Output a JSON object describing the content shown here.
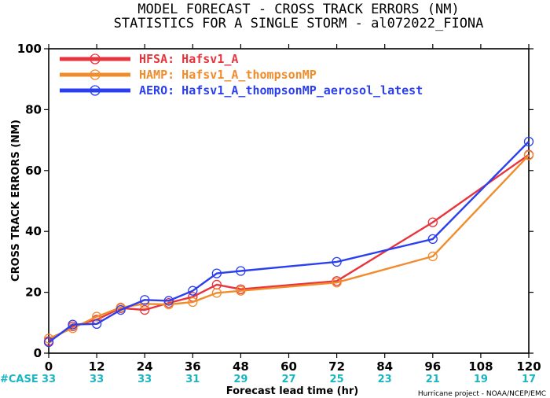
{
  "chart_data": {
    "type": "line",
    "title": "MODEL FORECAST - CROSS TRACK ERRORS (NM)",
    "subtitle": "STATISTICS FOR A SINGLE STORM - al072022_FIONA",
    "xlabel": "Forecast lead time (hr)",
    "ylabel": "CROSS TRACK ERRORS (NM)",
    "xlim": [
      0,
      120
    ],
    "ylim": [
      0,
      100
    ],
    "x_ticks": [
      "0",
      "12",
      "24",
      "36",
      "48",
      "60",
      "72",
      "84",
      "96",
      "108",
      "120"
    ],
    "y_ticks": [
      "0",
      "20",
      "40",
      "60",
      "80",
      "100"
    ],
    "case_label": "#CASE",
    "cases": [
      {
        "x": 0,
        "label": "33"
      },
      {
        "x": 12,
        "label": "33"
      },
      {
        "x": 24,
        "label": "33"
      },
      {
        "x": 36,
        "label": "31"
      },
      {
        "x": 48,
        "label": "29"
      },
      {
        "x": 60,
        "label": "27"
      },
      {
        "x": 72,
        "label": "25"
      },
      {
        "x": 84,
        "label": "23"
      },
      {
        "x": 96,
        "label": "21"
      },
      {
        "x": 108,
        "label": "19"
      },
      {
        "x": 120,
        "label": "17"
      }
    ],
    "credit": "Hurricane project - NOAA/NCEP/EMC",
    "legend_position": "top-left",
    "grid": false,
    "series": [
      {
        "name": "HFSA: Hafsv1_A",
        "color": "#e8343c",
        "x": [
          0,
          6,
          12,
          18,
          24,
          30,
          36,
          42,
          48,
          72,
          96,
          120
        ],
        "y": [
          4.0,
          8.8,
          11.0,
          14.8,
          14.2,
          16.5,
          18.5,
          22.5,
          21.0,
          23.7,
          43.0,
          65.2
        ]
      },
      {
        "name": "HAMP: Hafsv1_A_thompsonMP",
        "color": "#f08c2c",
        "x": [
          0,
          6,
          12,
          18,
          24,
          30,
          36,
          42,
          48,
          72,
          96,
          120
        ],
        "y": [
          4.8,
          8.2,
          12.0,
          15.0,
          16.2,
          16.0,
          16.8,
          19.8,
          20.5,
          23.2,
          31.8,
          65.0
        ]
      },
      {
        "name": "AERO: Hafsv1_A_thompsonMP_aerosol_latest",
        "color": "#2b3ff0",
        "x": [
          0,
          6,
          12,
          18,
          24,
          30,
          36,
          42,
          48,
          72,
          96,
          120
        ],
        "y": [
          3.6,
          9.4,
          9.6,
          14.2,
          17.5,
          17.2,
          20.5,
          26.2,
          27.0,
          30.0,
          37.5,
          69.5
        ]
      }
    ]
  }
}
